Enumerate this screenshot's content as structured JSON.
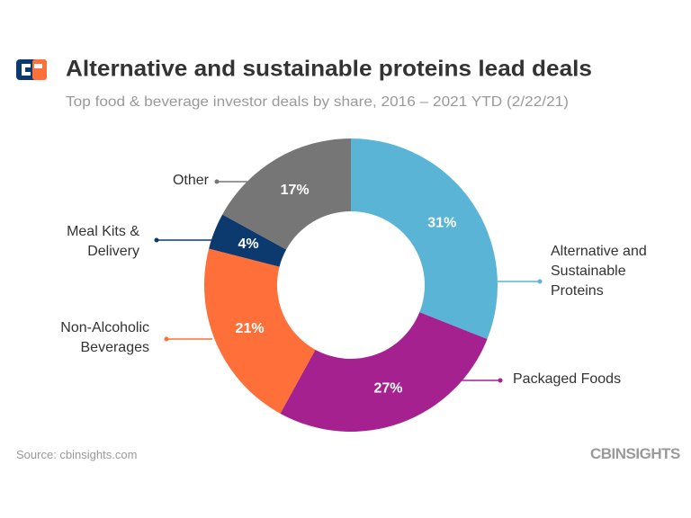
{
  "chart_data": {
    "type": "pie",
    "title": "Alternative and sustainable proteins lead deals",
    "subtitle": "Top food & beverage investor deals by share, 2016 – 2021 YTD (2/22/21)",
    "categories": [
      "Alternative and Sustainable Proteins",
      "Packaged Foods",
      "Non-Alcoholic Beverages",
      "Meal Kits & Delivery",
      "Other"
    ],
    "values": [
      31,
      27,
      21,
      4,
      17
    ],
    "value_labels": [
      "31%",
      "27%",
      "21%",
      "4%",
      "17%"
    ],
    "colors": [
      "#5ab4d6",
      "#a5218f",
      "#ff6f3a",
      "#0d3a6e",
      "#767676"
    ],
    "donut": true,
    "source": "Source: cbinsights.com",
    "brand": "CBINSIGHTS"
  }
}
